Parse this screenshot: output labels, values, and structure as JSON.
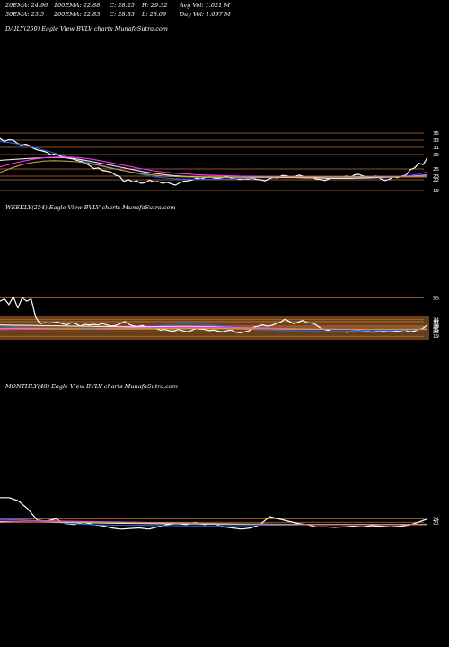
{
  "header": {
    "row1": [
      "20EMA: 24.96",
      "100EMA: 22.88",
      "C: 28.25",
      "H: 29.32",
      "Avg Vol: 1.021 M"
    ],
    "row2": [
      "30EMA: 23.5",
      "200EMA: 22.83",
      "C: 28.83",
      "L: 28.09",
      "Day Vol: 1.097 M"
    ]
  },
  "colors": {
    "background": "#000000",
    "price": "#ffffff",
    "ema_fast": "#1e63d6",
    "ema_slow": "#e8e8e8",
    "ema_mid": "#ff2bff",
    "ema_long": "#c79a3c",
    "levels": "#b8733c",
    "band": "#7a4a1c"
  },
  "chart_data": [
    {
      "type": "line",
      "title": "DAILY(250) Eagle  View  BVLV charts MunafaSutra.com",
      "ylim": [
        19,
        37
      ],
      "level_ticks": [
        "35",
        "33",
        "31",
        "29",
        "25",
        "23",
        "22",
        "19"
      ],
      "series": [
        {
          "values": [
            33.5,
            32.6,
            33.1,
            33.0,
            32.2,
            31.6,
            31.9,
            31.4,
            30.6,
            30.2,
            30.0,
            29.6,
            28.9,
            29.3,
            28.6,
            28.3,
            28.0,
            27.8,
            27.4,
            27.1,
            26.6,
            25.9,
            25.1,
            25.3,
            24.6,
            24.4,
            24.1,
            23.3,
            22.9,
            21.5,
            22.1,
            21.4,
            21.7,
            21.0,
            21.2,
            21.9,
            21.4,
            21.5,
            21.0,
            21.3,
            20.9,
            20.5,
            21.1,
            21.6,
            21.7,
            22.0,
            22.4,
            22.2,
            22.6,
            22.8,
            22.5,
            22.4,
            22.6,
            22.9,
            22.5,
            22.4,
            22.1,
            22.3,
            22.2,
            22.4,
            22.1,
            22.0,
            21.7,
            22.3,
            22.6,
            22.5,
            23.2,
            23.1,
            22.7,
            22.9,
            23.3,
            22.9,
            22.6,
            22.7,
            22.2,
            22.1,
            21.8,
            22.3,
            22.6,
            22.4,
            22.6,
            23.0,
            22.6,
            23.4,
            23.5,
            23.0,
            22.8,
            22.7,
            23.0,
            22.3,
            21.8,
            22.1,
            22.8,
            22.6,
            23.0,
            23.3,
            24.8,
            25.3,
            26.6,
            26.2,
            28.2
          ]
        },
        {
          "values": [
            32.6,
            32.3,
            31.9,
            31.3,
            30.6,
            29.9,
            29.1,
            28.3,
            27.6,
            26.9,
            26.3,
            25.6,
            25.0,
            24.4,
            23.8,
            23.3,
            22.8,
            22.5,
            22.3,
            22.2,
            22.1,
            22.1,
            22.1,
            22.2,
            22.3,
            22.4,
            22.5,
            22.6,
            22.6,
            22.6,
            22.7,
            22.6,
            22.6,
            22.6,
            22.6,
            22.6,
            22.5,
            22.4,
            22.4,
            22.5,
            22.6,
            22.8,
            23.1,
            23.5,
            24.2
          ]
        },
        {
          "values": [
            27.4,
            27.6,
            27.8,
            28.0,
            28.1,
            28.2,
            28.1,
            27.8,
            27.3,
            26.7,
            26.1,
            25.5,
            24.9,
            24.3,
            23.8,
            23.4,
            23.1,
            22.9,
            22.8,
            22.7,
            22.7,
            22.7,
            22.7,
            22.7,
            22.7,
            22.7,
            22.6,
            22.6,
            22.5,
            22.5,
            22.4,
            22.4,
            22.4,
            22.5,
            22.6,
            22.7,
            22.8,
            22.9,
            23.1,
            23.3
          ]
        },
        {
          "values": [
            25.6,
            26.4,
            27.1,
            27.7,
            28.1,
            28.3,
            28.3,
            28.2,
            27.9,
            27.4,
            26.8,
            26.2,
            25.6,
            25.0,
            24.5,
            24.1,
            23.8,
            23.6,
            23.4,
            23.3,
            23.2,
            23.1,
            23.0,
            23.0,
            22.9,
            22.9,
            22.9,
            22.9,
            22.8,
            22.8,
            22.8,
            22.8,
            22.8,
            22.8,
            22.9,
            22.9,
            22.9,
            23.0,
            23.0,
            23.1
          ]
        },
        {
          "values": [
            24.0,
            25.2,
            26.2,
            26.8,
            27.2,
            27.3,
            27.2,
            27.0,
            26.6,
            26.0,
            25.3,
            24.7,
            24.1,
            23.7,
            23.3,
            23.0,
            22.9,
            22.8,
            22.7,
            22.7,
            22.7,
            22.7,
            22.7,
            22.8,
            22.8,
            22.8,
            22.8,
            22.8,
            22.8,
            22.8,
            22.8,
            22.8,
            22.8,
            22.8,
            22.8,
            22.8,
            22.8,
            22.8,
            22.8,
            22.8
          ]
        }
      ]
    },
    {
      "type": "line",
      "title": "WEEKLY(254) Eagle  View  BVLV charts MunafaSutra.com",
      "ylim": [
        16,
        62
      ],
      "level_ticks": [
        "53",
        "34",
        "32",
        "31",
        "28",
        "27",
        "25",
        "23",
        "19"
      ],
      "series": [
        {
          "values": [
            50.0,
            52.0,
            47.0,
            54.0,
            44.0,
            53.0,
            50.0,
            52.0,
            36.0,
            30.0,
            31.0,
            30.5,
            31.0,
            31.5,
            30.0,
            29.0,
            31.0,
            30.0,
            28.0,
            29.5,
            29.0,
            29.5,
            29.0,
            30.0,
            29.0,
            28.0,
            28.5,
            30.0,
            32.0,
            29.5,
            28.0,
            27.5,
            28.5,
            26.5,
            27.5,
            26.0,
            24.5,
            25.0,
            24.0,
            23.5,
            25.0,
            24.0,
            23.0,
            24.0,
            26.0,
            25.5,
            25.0,
            24.0,
            24.5,
            23.5,
            23.0,
            24.0,
            24.5,
            22.5,
            22.0,
            23.0,
            24.0,
            27.0,
            28.0,
            29.0,
            28.0,
            28.5,
            30.0,
            31.5,
            34.0,
            32.0,
            30.0,
            31.5,
            33.0,
            31.0,
            30.5,
            29.0,
            26.0,
            25.0,
            24.0,
            23.0,
            23.5,
            23.0,
            22.5,
            23.5,
            24.0,
            24.0,
            23.5,
            23.0,
            22.5,
            24.0,
            23.5,
            23.0,
            23.0,
            23.5,
            24.0,
            24.5,
            23.0,
            23.5,
            25.0,
            26.0,
            29.0
          ]
        },
        {
          "values": [
            27.0,
            26.5,
            26.2,
            26.0,
            25.8,
            25.5,
            25.2,
            25.3,
            25.5,
            26.0,
            27.0,
            28.2,
            29.3,
            29.8,
            29.6,
            28.8,
            27.6,
            26.4,
            25.3,
            24.6,
            24.1,
            23.8,
            23.6,
            23.5,
            23.6,
            23.8,
            24.0,
            24.2,
            24.4,
            24.7,
            25.0
          ]
        },
        {
          "values": [
            29.0,
            28.8,
            28.6,
            28.4,
            28.2,
            28.0,
            27.8,
            27.6,
            27.4,
            27.3,
            27.3,
            27.4,
            27.6,
            27.7,
            27.6,
            27.3,
            26.9,
            26.5,
            26.1,
            25.8,
            25.6,
            25.4,
            25.3,
            25.2,
            25.1,
            25.1,
            25.1,
            25.2,
            25.2,
            25.3,
            25.3
          ]
        },
        {
          "values": [
            25.0,
            25.1,
            25.2,
            25.3,
            25.5,
            25.6,
            25.7,
            25.8,
            26.0,
            26.2,
            26.4,
            26.6,
            26.8,
            26.9,
            26.9,
            26.8,
            26.6,
            26.4,
            26.2,
            26.0,
            25.8,
            25.7,
            25.6,
            25.5,
            25.4,
            25.4,
            25.3,
            25.3,
            25.3,
            25.3,
            25.3
          ]
        },
        {
          "values": [
            26.0,
            25.9,
            25.8,
            25.8,
            25.7,
            25.7,
            25.6,
            25.6,
            25.6,
            25.6,
            25.7,
            25.8,
            25.9,
            26.0,
            26.0,
            25.9,
            25.8,
            25.7,
            25.6,
            25.5,
            25.4,
            25.4,
            25.3,
            25.3,
            25.2,
            25.2,
            25.2,
            25.2,
            25.2,
            25.2,
            25.2
          ]
        }
      ]
    },
    {
      "type": "line",
      "title": "MONTHLY(48) Eagle  View  BVLV charts MunafaSutra.com",
      "ylim": [
        10,
        70
      ],
      "level_ticks": [
        "24",
        "21"
      ],
      "series": [
        {
          "values": [
            43.0,
            43.0,
            40.0,
            33.0,
            23.0,
            22.0,
            24.0,
            20.0,
            19.0,
            21.0,
            19.0,
            18.0,
            16.0,
            15.0,
            15.5,
            16.0,
            15.0,
            17.0,
            19.0,
            20.0,
            19.0,
            20.5,
            19.0,
            20.0,
            17.0,
            16.0,
            15.0,
            16.0,
            19.0,
            26.0,
            24.0,
            22.0,
            20.0,
            19.0,
            17.0,
            17.0,
            16.5,
            17.0,
            17.5,
            17.0,
            18.0,
            17.5,
            17.0,
            17.5,
            18.5,
            21.0,
            24.0
          ]
        },
        {
          "values": [
            24.0,
            23.5,
            23.0,
            22.0,
            21.0,
            20.0,
            19.3,
            18.8,
            18.5,
            18.4,
            18.3,
            18.2,
            18.0,
            17.9,
            17.8,
            17.8,
            17.9,
            18.0,
            18.2,
            18.4,
            18.5,
            18.6,
            18.7,
            18.8,
            18.8,
            18.9,
            18.9,
            19.0,
            19.0,
            19.1,
            19.2,
            19.4
          ]
        },
        {
          "values": [
            21.5,
            21.4,
            21.3,
            21.2,
            21.0,
            20.8,
            20.6,
            20.4,
            20.2,
            20.0,
            19.9,
            19.8,
            19.7,
            19.6,
            19.5,
            19.4,
            19.3,
            19.3,
            19.2,
            19.2,
            19.1,
            19.1,
            19.1,
            19.1,
            19.0,
            19.0,
            19.0,
            19.0,
            19.0,
            19.0,
            19.0,
            19.0
          ]
        },
        {
          "values": [
            23.0,
            22.8,
            22.6,
            22.4,
            22.2,
            22.0,
            21.8,
            21.6,
            21.4,
            21.2,
            21.0,
            20.8,
            20.6,
            20.4,
            20.2,
            20.0,
            19.8,
            19.6,
            19.5,
            19.3,
            19.2,
            19.1,
            19.0,
            19.0,
            18.9,
            18.9,
            18.9,
            18.9,
            18.9,
            18.9,
            19.0,
            19.0
          ]
        },
        {
          "values": [
            21.0,
            21.1,
            21.2,
            21.3,
            21.3,
            21.2,
            21.1,
            21.0,
            20.9,
            20.8,
            20.6,
            20.5,
            20.3,
            20.2,
            20.0,
            19.9,
            19.8,
            19.7,
            19.6,
            19.5,
            19.4,
            19.3,
            19.2,
            19.2,
            19.1,
            19.1,
            19.1,
            19.1,
            19.1,
            19.1,
            19.1,
            19.1
          ]
        }
      ]
    }
  ]
}
